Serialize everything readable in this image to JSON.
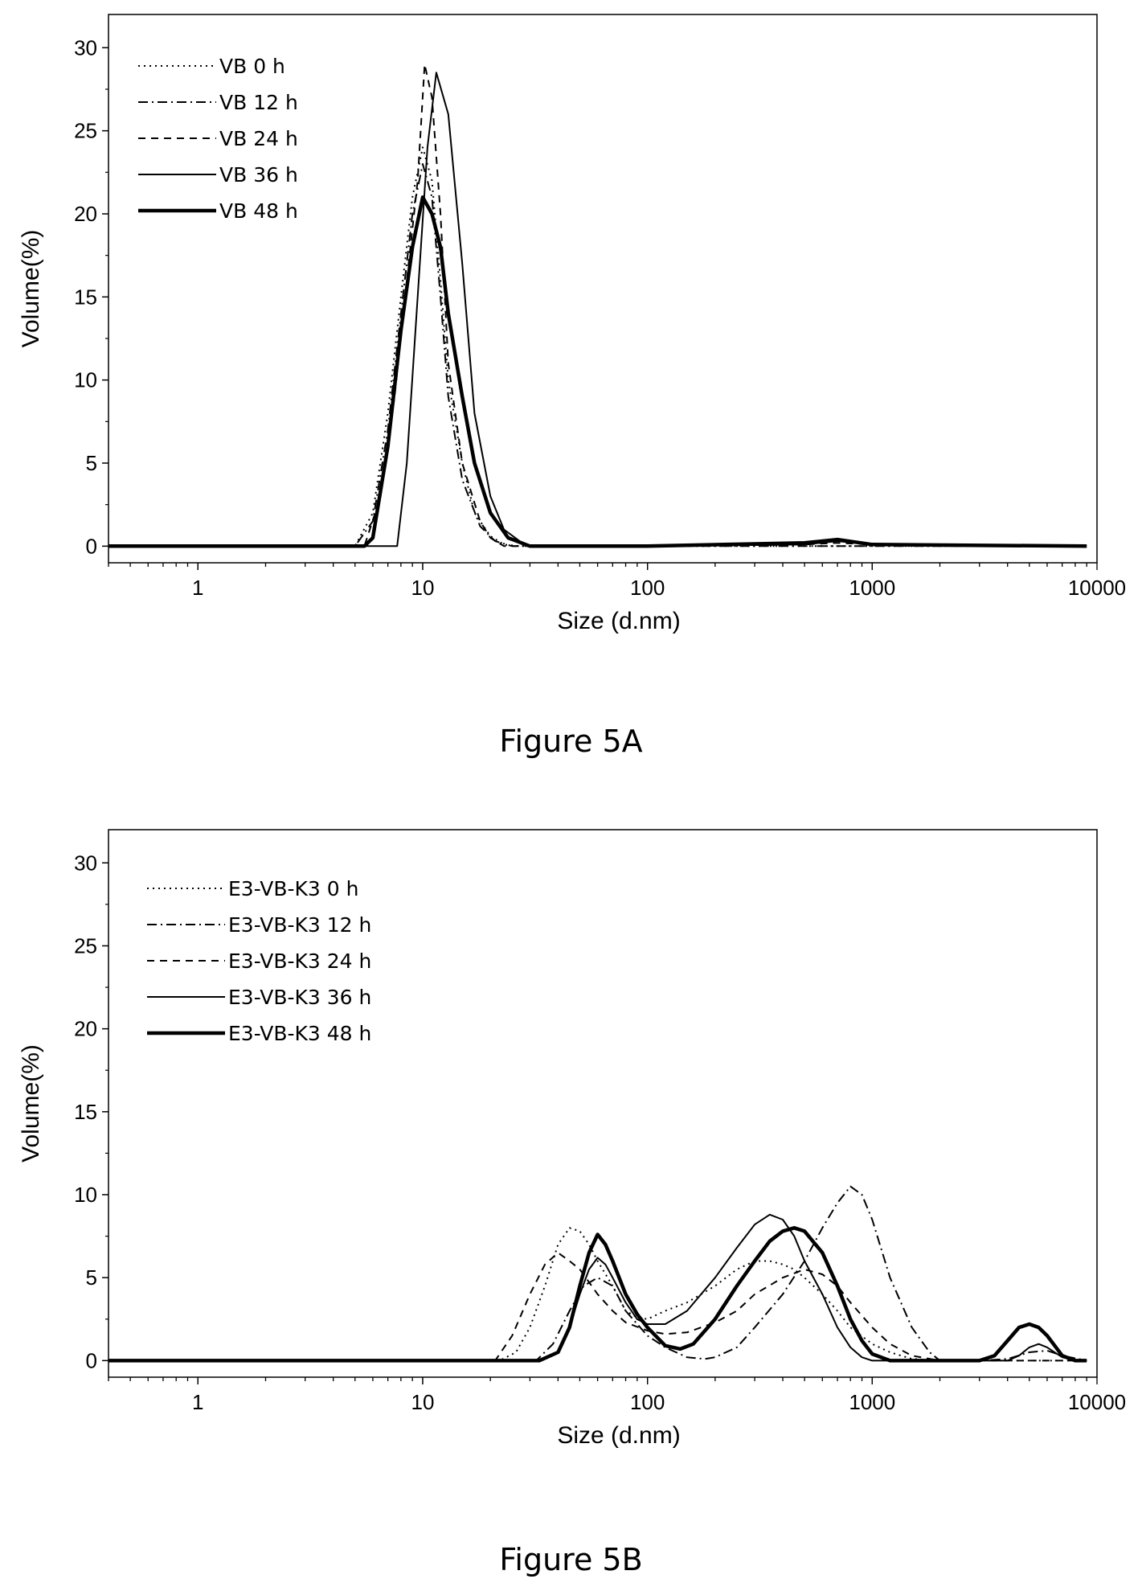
{
  "chart_data": [
    {
      "type": "line",
      "caption": "Figure 5A",
      "xlabel": "Size (d.nm)",
      "ylabel": "Volume(%)",
      "xscale": "log",
      "xlim": [
        0.4,
        10000
      ],
      "ylim": [
        -1,
        32
      ],
      "xticks": [
        "1",
        "10",
        "100",
        "1000",
        "10000"
      ],
      "yticks": [
        "0",
        "5",
        "10",
        "15",
        "20",
        "25",
        "30"
      ],
      "legend_position": "top-left",
      "series": [
        {
          "name": "VB 0 h",
          "style": "dotted",
          "x": [
            0.4,
            5,
            6,
            7,
            8,
            9,
            10,
            11,
            12,
            13,
            15,
            17,
            20,
            23,
            27,
            30,
            100,
            1000,
            9000
          ],
          "y": [
            0,
            0,
            2,
            8,
            15,
            21,
            24,
            22,
            16,
            10,
            5,
            2,
            0.6,
            0.1,
            0,
            0,
            0,
            0,
            0
          ]
        },
        {
          "name": "VB 12 h",
          "style": "dashdot",
          "x": [
            0.4,
            5,
            6,
            7,
            8,
            9,
            10,
            11,
            12,
            13,
            15,
            18,
            21,
            25,
            30,
            100,
            1000,
            9000
          ],
          "y": [
            0,
            0,
            1.5,
            7,
            14,
            20,
            23,
            21,
            15,
            9,
            4,
            1.2,
            0.3,
            0,
            0,
            0,
            0,
            0
          ]
        },
        {
          "name": "VB 24 h",
          "style": "dashed",
          "x": [
            0.4,
            5.5,
            6.5,
            7.5,
            8.5,
            9.5,
            10.2,
            11,
            12,
            13,
            15,
            18,
            20,
            23,
            30,
            100,
            500,
            700,
            1000,
            9000
          ],
          "y": [
            0,
            0,
            3,
            9,
            16,
            22,
            29,
            27,
            20,
            11,
            5,
            1.5,
            0.5,
            0,
            0,
            0,
            0.1,
            0.2,
            0.1,
            0
          ]
        },
        {
          "name": "VB 36 h",
          "style": "solid",
          "x": [
            0.4,
            7,
            7.7,
            8.5,
            9.5,
            10.5,
            11.5,
            13,
            15,
            17,
            20,
            23,
            27,
            30,
            100,
            500,
            700,
            1000,
            9000
          ],
          "y": [
            0,
            0,
            0,
            5,
            15,
            24,
            28.5,
            26,
            17,
            8,
            3,
            1,
            0.3,
            0,
            0,
            0.1,
            0.3,
            0.1,
            0
          ]
        },
        {
          "name": "VB 48 h",
          "style": "bold",
          "x": [
            0.4,
            5.5,
            6,
            7,
            8,
            9,
            10,
            11,
            12,
            13,
            15,
            17,
            20,
            24,
            30,
            100,
            500,
            700,
            1000,
            9000
          ],
          "y": [
            0,
            0,
            0.5,
            6,
            13,
            18,
            21,
            20,
            18,
            14,
            9,
            5,
            2,
            0.5,
            0,
            0,
            0.2,
            0.4,
            0.1,
            0
          ]
        }
      ]
    },
    {
      "type": "line",
      "caption": "Figure 5B",
      "xlabel": "Size (d.nm)",
      "ylabel": "Volume(%)",
      "xscale": "log",
      "xlim": [
        0.4,
        10000
      ],
      "ylim": [
        -1,
        32
      ],
      "xticks": [
        "1",
        "10",
        "100",
        "1000",
        "10000"
      ],
      "yticks": [
        "0",
        "5",
        "10",
        "15",
        "20",
        "25",
        "30"
      ],
      "legend_position": "top-left",
      "series": [
        {
          "name": "E3-VB-K3 0 h",
          "style": "dotted",
          "x": [
            0.4,
            22,
            26,
            30,
            35,
            40,
            45,
            50,
            55,
            60,
            70,
            80,
            90,
            100,
            120,
            150,
            200,
            250,
            300,
            350,
            400,
            450,
            500,
            600,
            700,
            800,
            1000,
            1200,
            1500,
            2000,
            4000,
            6000,
            9000
          ],
          "y": [
            0,
            0,
            0.5,
            2,
            4.5,
            7,
            8,
            7.8,
            7,
            6,
            4.5,
            3,
            2.6,
            2.5,
            3,
            3.5,
            4.5,
            5.5,
            6,
            6,
            5.8,
            5.5,
            5,
            4,
            3,
            2,
            1,
            0.5,
            0.1,
            0,
            0,
            0,
            0
          ]
        },
        {
          "name": "E3-VB-K3 12 h",
          "style": "dashdot",
          "x": [
            0.4,
            32,
            38,
            45,
            52,
            60,
            70,
            80,
            100,
            120,
            150,
            180,
            200,
            250,
            300,
            400,
            500,
            600,
            700,
            800,
            900,
            1000,
            1200,
            1500,
            1800,
            2000,
            3000,
            4000,
            5000,
            6000,
            7000,
            9000
          ],
          "y": [
            0,
            0,
            1,
            3,
            4.5,
            5,
            4.5,
            3,
            1.5,
            0.8,
            0.2,
            0.1,
            0.2,
            0.8,
            2,
            4,
            6,
            8,
            9.5,
            10.5,
            10,
            8.5,
            5,
            2,
            0.5,
            0,
            0,
            0.1,
            0.5,
            0.6,
            0.3,
            0
          ]
        },
        {
          "name": "E3-VB-K3 24 h",
          "style": "dashed",
          "x": [
            0.4,
            21,
            25,
            30,
            35,
            40,
            45,
            50,
            60,
            70,
            80,
            100,
            120,
            150,
            200,
            250,
            300,
            400,
            500,
            600,
            700,
            800,
            1000,
            1200,
            1500,
            2000,
            4000,
            6000,
            9000
          ],
          "y": [
            0,
            0,
            1.5,
            4,
            5.8,
            6.5,
            6,
            5.5,
            4,
            3,
            2.3,
            1.8,
            1.6,
            1.7,
            2.3,
            3,
            4,
            5,
            5.5,
            5.2,
            4.5,
            3.5,
            2,
            1,
            0.3,
            0,
            0,
            0,
            0
          ]
        },
        {
          "name": "E3-VB-K3 36 h",
          "style": "solid",
          "x": [
            0.4,
            33,
            40,
            45,
            50,
            55,
            60,
            65,
            70,
            80,
            90,
            100,
            120,
            150,
            200,
            250,
            300,
            350,
            400,
            450,
            500,
            600,
            700,
            800,
            900,
            1000,
            1200,
            1500,
            2000,
            4000,
            4500,
            5000,
            5500,
            6000,
            7000,
            8000,
            9000
          ],
          "y": [
            0,
            0,
            0.5,
            2,
            4,
            5.5,
            6.2,
            5.8,
            5,
            3.5,
            2.5,
            2.2,
            2.2,
            3,
            5,
            6.8,
            8.2,
            8.8,
            8.5,
            7.5,
            6,
            4,
            2,
            0.8,
            0.2,
            0,
            0,
            0,
            0,
            0,
            0.3,
            0.8,
            1,
            0.8,
            0.2,
            0,
            0
          ]
        },
        {
          "name": "E3-VB-K3 48 h",
          "style": "bold",
          "x": [
            0.4,
            33,
            40,
            45,
            50,
            55,
            60,
            65,
            70,
            80,
            90,
            100,
            120,
            140,
            160,
            200,
            250,
            300,
            350,
            400,
            450,
            500,
            600,
            700,
            800,
            900,
            1000,
            1200,
            1500,
            2000,
            3000,
            3500,
            4000,
            4500,
            5000,
            5500,
            6000,
            7000,
            8000,
            9000
          ],
          "y": [
            0,
            0,
            0.5,
            2,
            4.5,
            6.5,
            7.6,
            7,
            6,
            4,
            2.8,
            2,
            0.9,
            0.7,
            1,
            2.5,
            4.5,
            6,
            7.2,
            7.8,
            8,
            7.8,
            6.5,
            4.5,
            2.5,
            1.2,
            0.4,
            0,
            0,
            0,
            0,
            0.3,
            1.2,
            2,
            2.2,
            2,
            1.5,
            0.3,
            0,
            0
          ]
        }
      ]
    }
  ]
}
